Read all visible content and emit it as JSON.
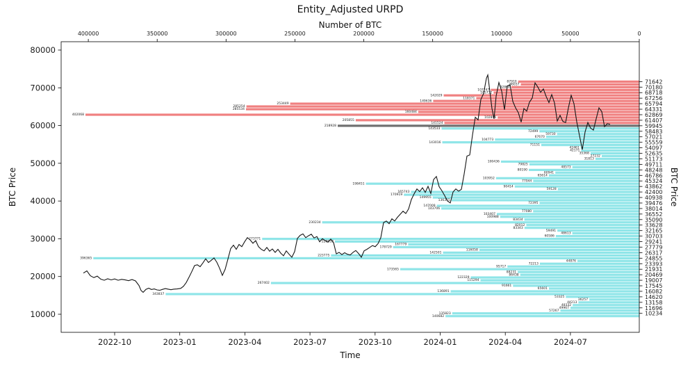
{
  "title": "Entity_Adjusted URPD",
  "axes": {
    "top": {
      "label": "Number of BTC",
      "ticks": [
        400000,
        350000,
        300000,
        250000,
        200000,
        150000,
        100000,
        50000,
        0
      ]
    },
    "bottom": {
      "label": "Time",
      "ticks": [
        "2022-10",
        "2023-01",
        "2023-04",
        "2023-07",
        "2023-10",
        "2024-01",
        "2024-04",
        "2024-07"
      ]
    },
    "left": {
      "label": "BTC Price",
      "ticks": [
        10000,
        20000,
        30000,
        40000,
        50000,
        60000,
        70000,
        80000
      ]
    },
    "right": {
      "label": "BTC Price",
      "ticks": [
        71642,
        70180,
        68718,
        67256,
        65794,
        64331,
        62869,
        61407,
        59945,
        58483,
        57021,
        55559,
        54097,
        52635,
        51173,
        49711,
        48248,
        46786,
        45324,
        43862,
        42400,
        40938,
        39476,
        38014,
        36552,
        35090,
        33628,
        32165,
        30703,
        29241,
        27779,
        26317,
        24855,
        23393,
        21931,
        20469,
        19007,
        17545,
        16082,
        14620,
        13158,
        11696,
        10234
      ]
    }
  },
  "colors": {
    "above": "#f08080",
    "below": "#8fe5e8",
    "current": "#6f6f6f",
    "line": "#151515",
    "spine": "#000000",
    "text": "#1a1a1a"
  },
  "chart_data": {
    "type": "bar",
    "subtype": "horizontal-bar-distribution-with-price-line",
    "title": "Entity_Adjusted URPD",
    "xlabel_top": "Number of BTC",
    "xlabel_bottom": "Time",
    "ylabel": "BTC Price",
    "xlim_btc": [
      400000,
      0
    ],
    "ylim_price": [
      7800,
      82200
    ],
    "bar_band_rule": "bars above current price are 'above' (red), the current-price bar is 'current' (gray), bars below are 'below' (cyan)",
    "above_count": 16,
    "current_index": 16,
    "bars": {
      "prices": [
        71642,
        70911,
        70180,
        69449,
        68718,
        67987,
        67256,
        66525,
        65794,
        65063,
        64331,
        63600,
        62869,
        62138,
        61407,
        60676,
        59945,
        59214,
        58483,
        57752,
        57021,
        56290,
        55559,
        54828,
        54097,
        53366,
        52635,
        51904,
        51173,
        50442,
        49711,
        48980,
        48248,
        47517,
        46786,
        46055,
        45324,
        44593,
        43862,
        43131,
        42400,
        41669,
        40938,
        40207,
        39476,
        38745,
        38014,
        37283,
        36552,
        35821,
        35090,
        34359,
        33628,
        32897,
        32165,
        31434,
        30703,
        29972,
        29241,
        28510,
        27779,
        27048,
        26317,
        25586,
        24855,
        24124,
        23393,
        22662,
        21931,
        21200,
        20469,
        19738,
        19007,
        18276,
        17545,
        16814,
        16082,
        15351,
        14620,
        13889,
        13158,
        12427,
        11696,
        10965,
        10234,
        9503
      ],
      "btc": [
        87910,
        86037,
        92864,
        107747,
        105732,
        142029,
        118371,
        149636,
        253449,
        285254,
        285534,
        160484,
        402068,
        102806,
        205855,
        141524,
        218928,
        143533,
        72499,
        59730,
        67670,
        104773,
        143016,
        71151,
        42461,
        42171,
        35368,
        27232,
        31813,
        100436,
        79825,
        48573,
        80190,
        60941,
        65614,
        103952,
        77044,
        198451,
        90414,
        59128,
        165743,
        170919,
        149955,
        136315,
        72395,
        147009,
        143706,
        77080,
        103407,
        100988,
        83434,
        230234,
        82012,
        83343,
        59491,
        48613,
        60586,
        273771,
        220952,
        167779,
        178729,
        116058,
        142501,
        223775,
        396365,
        44876,
        72213,
        95717,
        173565,
        88231,
        86438,
        122329,
        115294,
        267402,
        91661,
        65601,
        136891,
        343837,
        53325,
        36257,
        44213,
        48332,
        49967,
        57267,
        135823,
        140682
      ]
    },
    "price_line": {
      "name": "BTC Price",
      "points_x_price": [
        [
          120,
          20900
        ],
        [
          125,
          21500
        ],
        [
          130,
          20200
        ],
        [
          135,
          19700
        ],
        [
          140,
          20100
        ],
        [
          145,
          19300
        ],
        [
          150,
          19000
        ],
        [
          155,
          19400
        ],
        [
          160,
          19100
        ],
        [
          165,
          19350
        ],
        [
          170,
          19000
        ],
        [
          175,
          19250
        ],
        [
          180,
          19100
        ],
        [
          185,
          18900
        ],
        [
          190,
          19200
        ],
        [
          195,
          18850
        ],
        [
          200,
          17600
        ],
        [
          203,
          16300
        ],
        [
          206,
          15800
        ],
        [
          210,
          16600
        ],
        [
          214,
          16900
        ],
        [
          218,
          16550
        ],
        [
          222,
          16700
        ],
        [
          226,
          16450
        ],
        [
          230,
          16350
        ],
        [
          234,
          16600
        ],
        [
          238,
          16800
        ],
        [
          242,
          16650
        ],
        [
          246,
          16500
        ],
        [
          250,
          16650
        ],
        [
          255,
          16700
        ],
        [
          260,
          16850
        ],
        [
          264,
          17400
        ],
        [
          268,
          18400
        ],
        [
          272,
          19800
        ],
        [
          276,
          21300
        ],
        [
          280,
          22900
        ],
        [
          284,
          23100
        ],
        [
          288,
          22600
        ],
        [
          292,
          23600
        ],
        [
          296,
          24700
        ],
        [
          300,
          23700
        ],
        [
          304,
          24300
        ],
        [
          308,
          24900
        ],
        [
          312,
          23800
        ],
        [
          316,
          22200
        ],
        [
          320,
          20300
        ],
        [
          324,
          21900
        ],
        [
          328,
          24600
        ],
        [
          332,
          27400
        ],
        [
          336,
          28300
        ],
        [
          340,
          27200
        ],
        [
          344,
          28500
        ],
        [
          348,
          27900
        ],
        [
          352,
          29200
        ],
        [
          356,
          30300
        ],
        [
          360,
          29700
        ],
        [
          364,
          28800
        ],
        [
          368,
          29500
        ],
        [
          372,
          27900
        ],
        [
          376,
          27200
        ],
        [
          380,
          26800
        ],
        [
          384,
          27700
        ],
        [
          388,
          26700
        ],
        [
          392,
          27300
        ],
        [
          396,
          26400
        ],
        [
          400,
          27200
        ],
        [
          404,
          26200
        ],
        [
          408,
          25500
        ],
        [
          412,
          26800
        ],
        [
          416,
          25900
        ],
        [
          420,
          25100
        ],
        [
          424,
          26600
        ],
        [
          428,
          30100
        ],
        [
          432,
          30900
        ],
        [
          436,
          31300
        ],
        [
          440,
          30300
        ],
        [
          444,
          30800
        ],
        [
          448,
          31200
        ],
        [
          452,
          30200
        ],
        [
          456,
          30600
        ],
        [
          460,
          29200
        ],
        [
          464,
          30000
        ],
        [
          468,
          29500
        ],
        [
          472,
          29100
        ],
        [
          476,
          29900
        ],
        [
          480,
          29000
        ],
        [
          484,
          26000
        ],
        [
          488,
          26400
        ],
        [
          492,
          25800
        ],
        [
          496,
          26300
        ],
        [
          500,
          25900
        ],
        [
          504,
          25700
        ],
        [
          508,
          26400
        ],
        [
          512,
          26900
        ],
        [
          516,
          26100
        ],
        [
          520,
          25100
        ],
        [
          524,
          26800
        ],
        [
          528,
          27200
        ],
        [
          532,
          27700
        ],
        [
          536,
          28200
        ],
        [
          540,
          27900
        ],
        [
          544,
          28700
        ],
        [
          548,
          30300
        ],
        [
          552,
          34300
        ],
        [
          556,
          34700
        ],
        [
          560,
          34000
        ],
        [
          564,
          35300
        ],
        [
          568,
          34700
        ],
        [
          572,
          35700
        ],
        [
          576,
          36500
        ],
        [
          580,
          37300
        ],
        [
          584,
          36700
        ],
        [
          588,
          37900
        ],
        [
          592,
          40400
        ],
        [
          596,
          41900
        ],
        [
          600,
          43200
        ],
        [
          604,
          42500
        ],
        [
          608,
          43500
        ],
        [
          612,
          42300
        ],
        [
          616,
          43900
        ],
        [
          620,
          42000
        ],
        [
          624,
          45700
        ],
        [
          628,
          46500
        ],
        [
          632,
          43800
        ],
        [
          636,
          42700
        ],
        [
          640,
          41400
        ],
        [
          644,
          40000
        ],
        [
          648,
          39500
        ],
        [
          652,
          42400
        ],
        [
          656,
          43200
        ],
        [
          660,
          42600
        ],
        [
          664,
          43100
        ],
        [
          668,
          47200
        ],
        [
          672,
          51900
        ],
        [
          676,
          52200
        ],
        [
          680,
          57500
        ],
        [
          684,
          62200
        ],
        [
          688,
          61500
        ],
        [
          692,
          66900
        ],
        [
          696,
          68500
        ],
        [
          700,
          72500
        ],
        [
          702,
          73400
        ],
        [
          705,
          69000
        ],
        [
          708,
          64500
        ],
        [
          711,
          61800
        ],
        [
          714,
          67800
        ],
        [
          718,
          71400
        ],
        [
          722,
          69100
        ],
        [
          726,
          64200
        ],
        [
          730,
          70500
        ],
        [
          734,
          70800
        ],
        [
          738,
          66400
        ],
        [
          742,
          64700
        ],
        [
          746,
          63400
        ],
        [
          750,
          60900
        ],
        [
          754,
          64500
        ],
        [
          758,
          63800
        ],
        [
          762,
          66200
        ],
        [
          766,
          67300
        ],
        [
          770,
          71300
        ],
        [
          774,
          70200
        ],
        [
          778,
          68800
        ],
        [
          782,
          69700
        ],
        [
          786,
          67700
        ],
        [
          790,
          66100
        ],
        [
          794,
          68200
        ],
        [
          798,
          66000
        ],
        [
          802,
          61200
        ],
        [
          806,
          62700
        ],
        [
          810,
          61100
        ],
        [
          814,
          60800
        ],
        [
          818,
          64700
        ],
        [
          822,
          68000
        ],
        [
          826,
          65800
        ],
        [
          830,
          61000
        ],
        [
          834,
          57300
        ],
        [
          838,
          53600
        ],
        [
          842,
          58300
        ],
        [
          846,
          60800
        ],
        [
          850,
          59300
        ],
        [
          854,
          58800
        ],
        [
          858,
          61800
        ],
        [
          862,
          64700
        ],
        [
          866,
          63700
        ],
        [
          870,
          59700
        ],
        [
          874,
          60500
        ],
        [
          878,
          60300
        ]
      ]
    }
  }
}
